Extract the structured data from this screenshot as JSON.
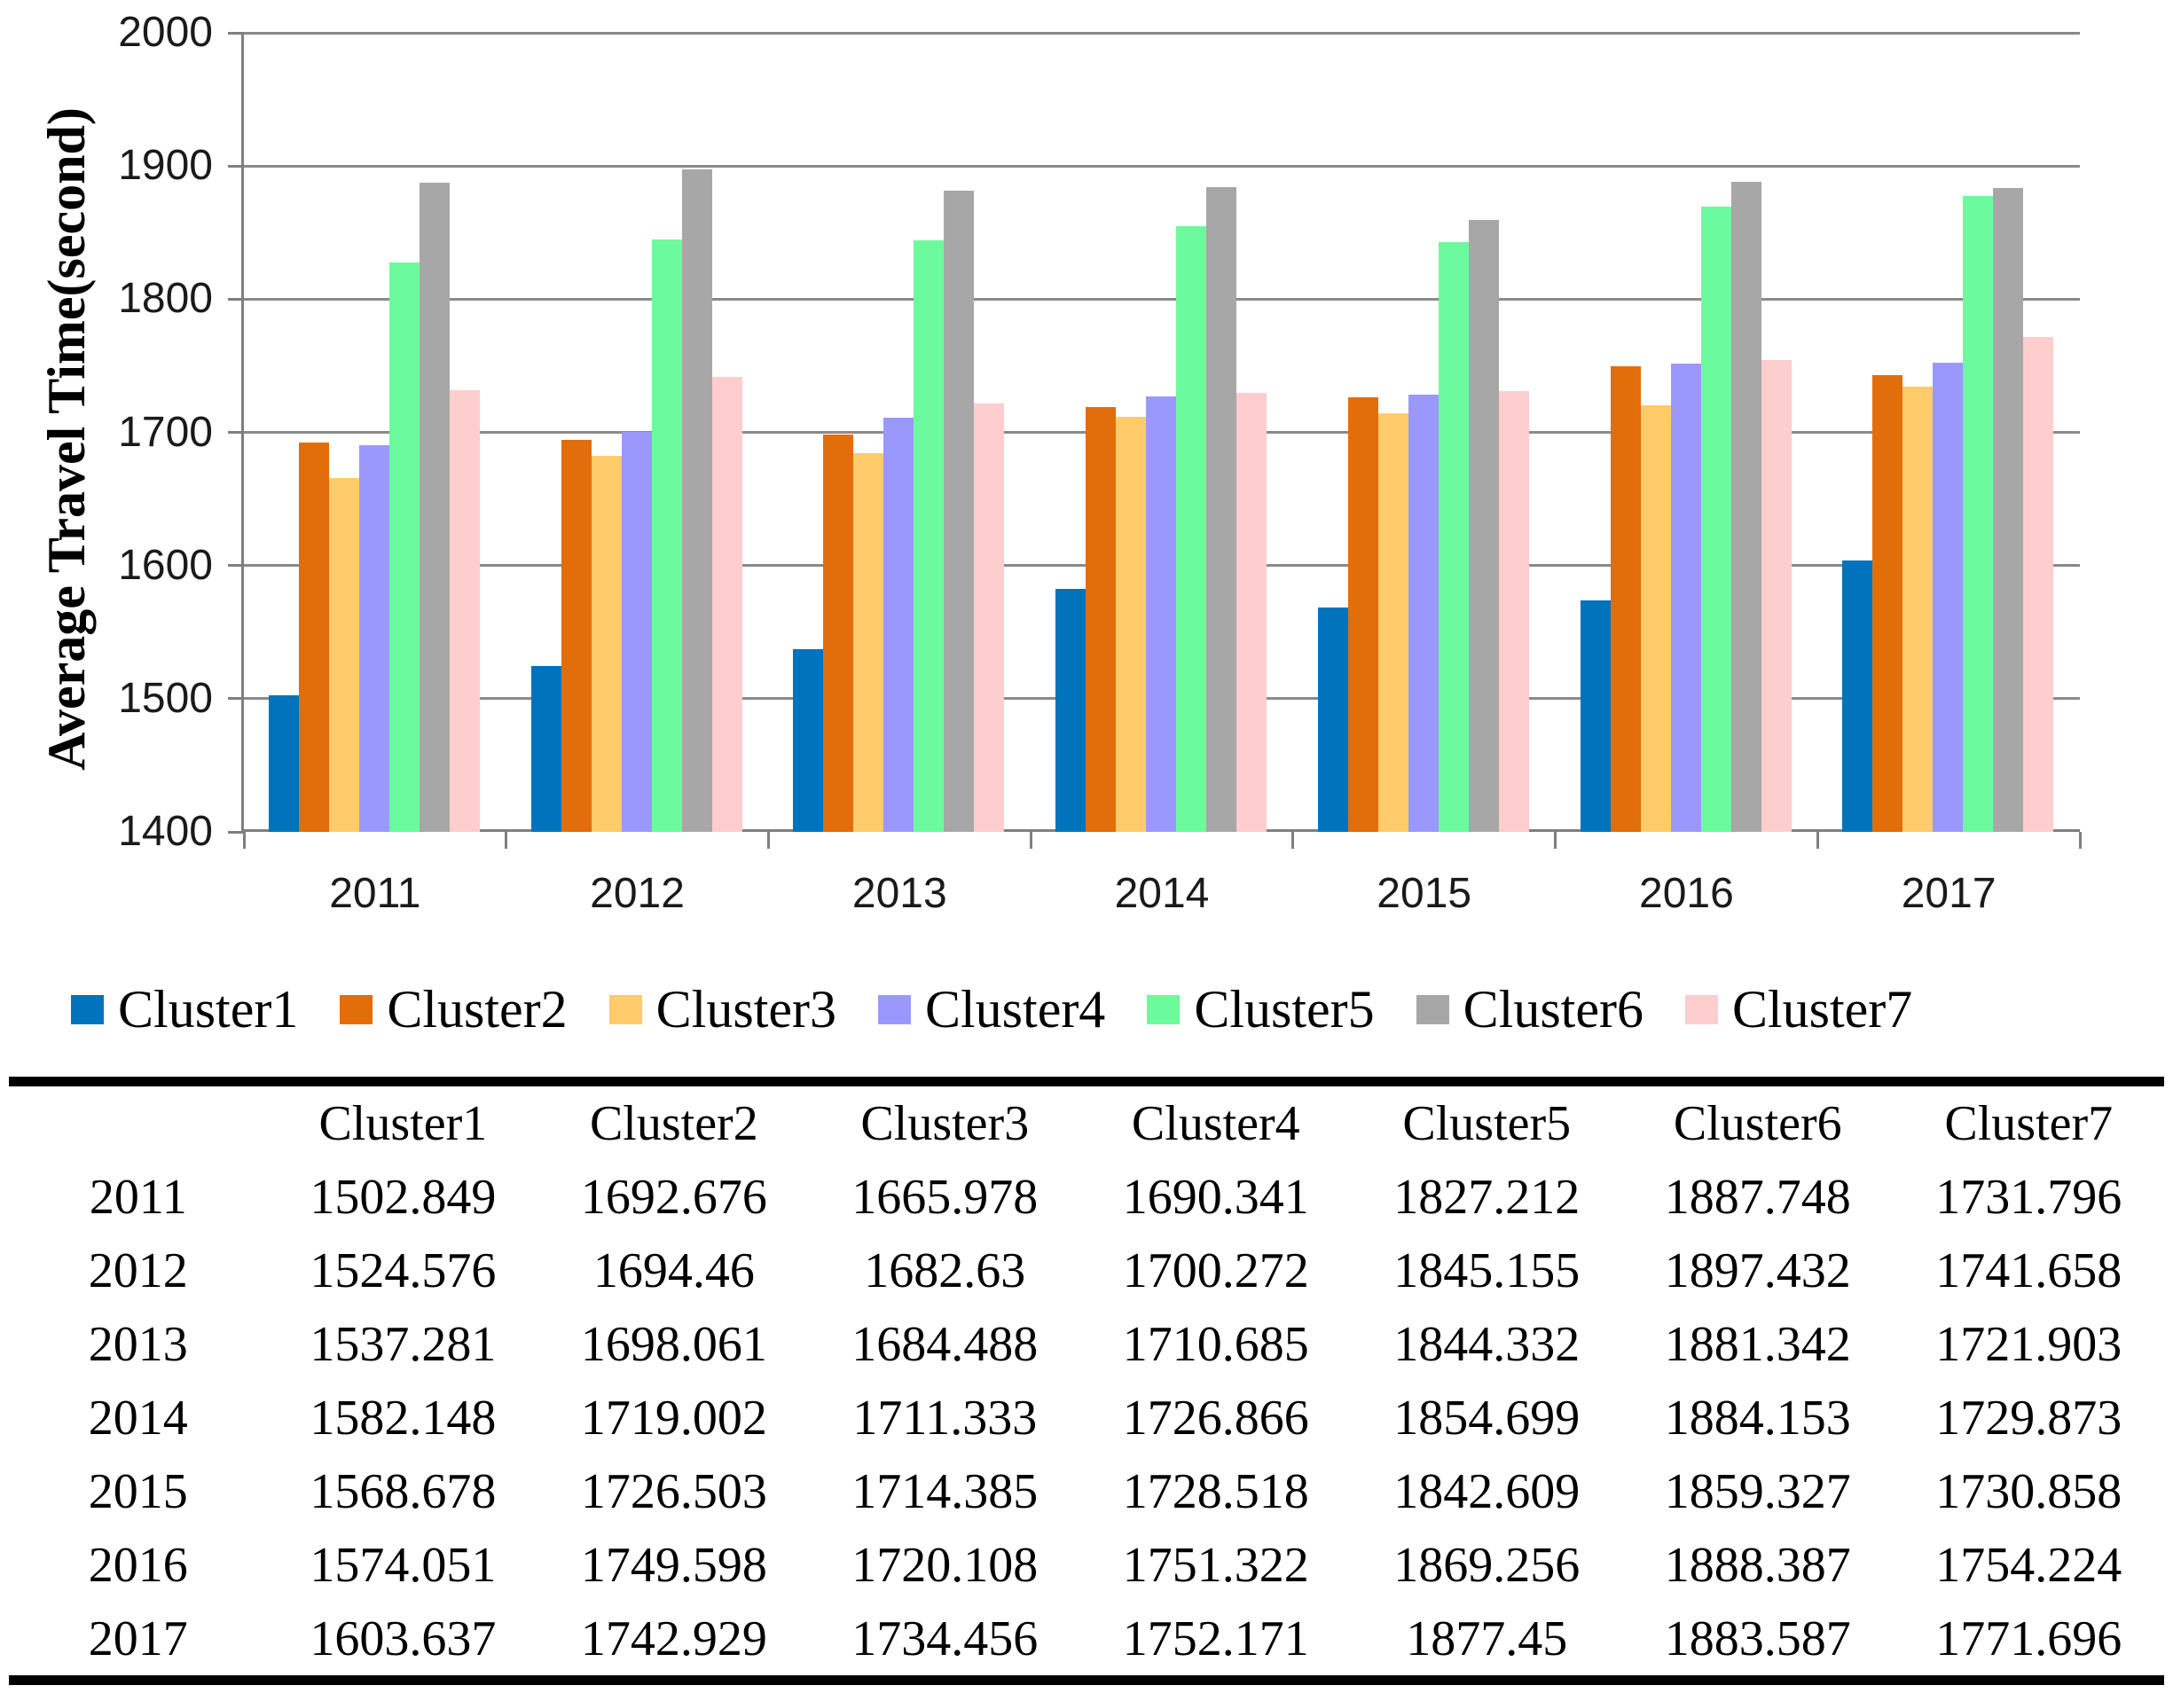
{
  "chart": {
    "y_axis": {
      "title": "Average Travel Time(second)",
      "tick_labels": [
        "2000",
        "1900",
        "1800",
        "1700",
        "1600",
        "1500",
        "1400"
      ],
      "min": 1400,
      "max": 2000,
      "step": 100
    },
    "x_axis": {
      "tick_labels": [
        "2011",
        "2012",
        "2013",
        "2014",
        "2015",
        "2016",
        "2017"
      ]
    },
    "colors": {
      "axis": "#7f7f7f",
      "gridline": "#8a8a8a",
      "background": "#ffffff"
    }
  },
  "chart_data": {
    "type": "bar",
    "title": "",
    "xlabel": "",
    "ylabel": "Average Travel Time(second)",
    "ylim": [
      1400,
      2000
    ],
    "grid": true,
    "legend_position": "bottom",
    "categories": [
      "2011",
      "2012",
      "2013",
      "2014",
      "2015",
      "2016",
      "2017"
    ],
    "series": [
      {
        "name": "Cluster1",
        "color": "#0073BD",
        "values": [
          1502.849,
          1524.576,
          1537.281,
          1582.148,
          1568.678,
          1574.051,
          1603.637
        ]
      },
      {
        "name": "Cluster2",
        "color": "#E26D0B",
        "values": [
          1692.676,
          1694.46,
          1698.061,
          1719.002,
          1726.503,
          1749.598,
          1742.929
        ]
      },
      {
        "name": "Cluster3",
        "color": "#FFCB6B",
        "values": [
          1665.978,
          1682.63,
          1684.488,
          1711.333,
          1714.385,
          1720.108,
          1734.456
        ]
      },
      {
        "name": "Cluster4",
        "color": "#9A99FB",
        "values": [
          1690.341,
          1700.272,
          1710.685,
          1726.866,
          1728.518,
          1751.322,
          1752.171
        ]
      },
      {
        "name": "Cluster5",
        "color": "#6CFB9C",
        "values": [
          1827.212,
          1845.155,
          1844.332,
          1854.699,
          1842.609,
          1869.256,
          1877.45
        ]
      },
      {
        "name": "Cluster6",
        "color": "#A7A7A7",
        "values": [
          1887.748,
          1897.432,
          1881.342,
          1884.153,
          1859.327,
          1888.387,
          1883.587
        ]
      },
      {
        "name": "Cluster7",
        "color": "#FECDCD",
        "values": [
          1731.796,
          1741.658,
          1721.903,
          1729.873,
          1730.858,
          1754.224,
          1771.696
        ]
      }
    ]
  },
  "legend": {
    "items": [
      "Cluster1",
      "Cluster2",
      "Cluster3",
      "Cluster4",
      "Cluster5",
      "Cluster6",
      "Cluster7"
    ]
  },
  "table": {
    "corner_label": "",
    "headers": [
      "Cluster1",
      "Cluster2",
      "Cluster3",
      "Cluster4",
      "Cluster5",
      "Cluster6",
      "Cluster7"
    ],
    "rows": [
      {
        "label": "2011",
        "values": [
          "1502.849",
          "1692.676",
          "1665.978",
          "1690.341",
          "1827.212",
          "1887.748",
          "1731.796"
        ]
      },
      {
        "label": "2012",
        "values": [
          "1524.576",
          "1694.46",
          "1682.63",
          "1700.272",
          "1845.155",
          "1897.432",
          "1741.658"
        ]
      },
      {
        "label": "2013",
        "values": [
          "1537.281",
          "1698.061",
          "1684.488",
          "1710.685",
          "1844.332",
          "1881.342",
          "1721.903"
        ]
      },
      {
        "label": "2014",
        "values": [
          "1582.148",
          "1719.002",
          "1711.333",
          "1726.866",
          "1854.699",
          "1884.153",
          "1729.873"
        ]
      },
      {
        "label": "2015",
        "values": [
          "1568.678",
          "1726.503",
          "1714.385",
          "1728.518",
          "1842.609",
          "1859.327",
          "1730.858"
        ]
      },
      {
        "label": "2016",
        "values": [
          "1574.051",
          "1749.598",
          "1720.108",
          "1751.322",
          "1869.256",
          "1888.387",
          "1754.224"
        ]
      },
      {
        "label": "2017",
        "values": [
          "1603.637",
          "1742.929",
          "1734.456",
          "1752.171",
          "1877.45",
          "1883.587",
          "1771.696"
        ]
      }
    ]
  }
}
